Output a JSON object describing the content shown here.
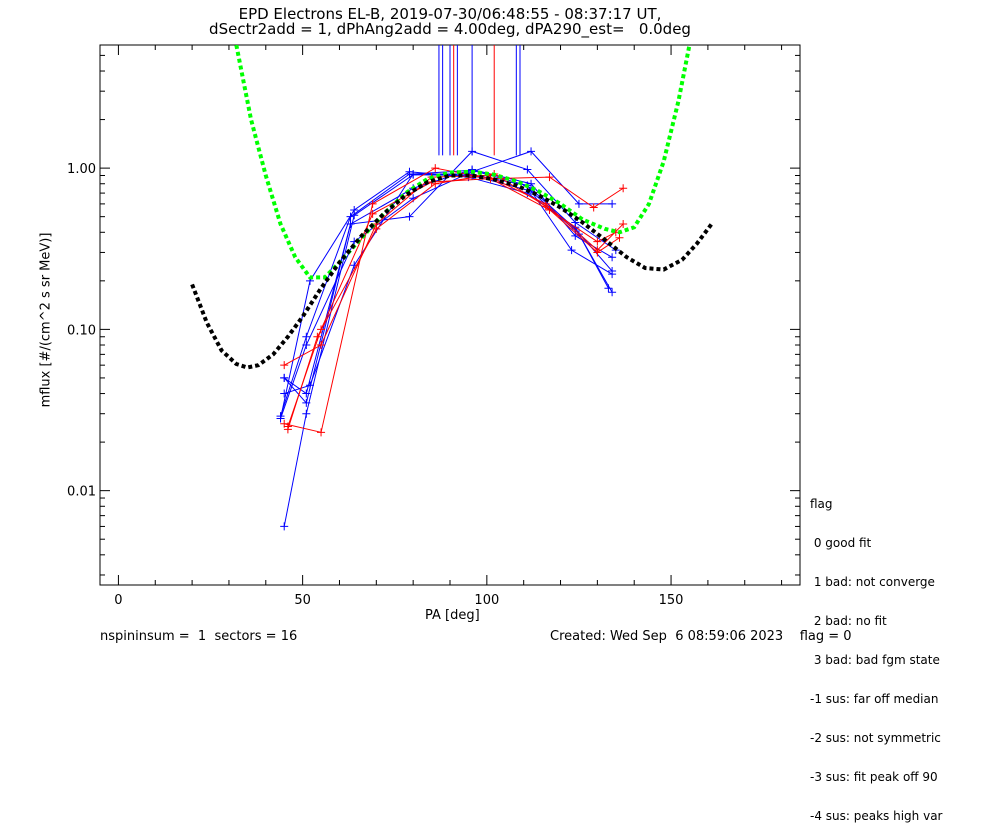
{
  "title_line1": "EPD Electrons EL-B, 2019-07-30/06:48:55 - 08:37:17 UT,",
  "title_line2": "dSectr2add = 1, dPhAng2add = 4.00deg, dPA290_est=   0.0deg",
  "footer_left": "nspininsum =  1  sectors = 16",
  "footer_right": "Created: Wed Sep  6 08:59:06 2023    flag = 0",
  "legend": {
    "title": "flag",
    "items": [
      " 0 good fit",
      " 1 bad: not converge",
      " 2 bad: no fit",
      " 3 bad: bad fgm state",
      "-1 sus: far off median",
      "-2 sus: not symmetric",
      "-3 sus: fit peak off 90",
      "-4 sus: peaks high var"
    ]
  },
  "chart_data": {
    "type": "line",
    "xlabel": "PA [deg]",
    "ylabel": "mflux [#/(cm^2 s sr MeV)]",
    "xlim": [
      -5,
      185
    ],
    "ylim": [
      0.0026,
      5.8
    ],
    "yscale": "log",
    "xticks": [
      0,
      50,
      100,
      150
    ],
    "yticks": [
      0.01,
      0.1,
      1.0
    ],
    "ytick_labels": [
      "0.01",
      "0.10",
      "1.00"
    ],
    "colors": {
      "blue": "#0000ff",
      "red": "#ff0000",
      "green": "#00ff00",
      "black": "#000000"
    },
    "series": [
      {
        "color": "blue",
        "points": [
          [
            44,
            0.029
          ],
          [
            51,
            0.09
          ],
          [
            63,
            0.5
          ],
          [
            79,
            0.92
          ],
          [
            95,
            0.92
          ],
          [
            111,
            0.78
          ],
          [
            124,
            0.42
          ],
          [
            134,
            0.23
          ]
        ]
      },
      {
        "color": "blue",
        "points": [
          [
            45,
            0.006
          ],
          [
            51,
            0.03
          ],
          [
            64,
            0.51
          ],
          [
            80,
            0.91
          ],
          [
            96,
            0.9
          ],
          [
            112,
            0.72
          ],
          [
            125,
            0.39
          ],
          [
            134,
            0.17
          ]
        ]
      },
      {
        "color": "blue",
        "points": [
          [
            44,
            0.028
          ],
          [
            52,
            0.2
          ],
          [
            64,
            0.55
          ],
          [
            79,
            0.95
          ],
          [
            95,
            0.88
          ],
          [
            111,
            0.7
          ],
          [
            124,
            0.43
          ],
          [
            133,
            0.18
          ]
        ]
      },
      {
        "color": "blue",
        "points": [
          [
            45,
            0.05
          ],
          [
            51,
            0.04
          ],
          [
            63,
            0.45
          ],
          [
            79,
            0.5
          ],
          [
            96,
            1.27
          ],
          [
            111,
            0.98
          ],
          [
            124,
            0.46
          ],
          [
            135,
            0.31
          ]
        ]
      },
      {
        "color": "blue",
        "points": [
          [
            44,
            0.028
          ],
          [
            51,
            0.08
          ],
          [
            64,
            0.35
          ],
          [
            80,
            0.65
          ],
          [
            96,
            0.95
          ],
          [
            112,
            1.27
          ],
          [
            125,
            0.6
          ],
          [
            134,
            0.6
          ]
        ]
      },
      {
        "color": "blue",
        "points": [
          [
            45,
            0.05
          ],
          [
            51,
            0.035
          ],
          [
            63,
            0.45
          ],
          [
            80,
            0.75
          ],
          [
            96,
            0.98
          ],
          [
            112,
            0.8
          ],
          [
            124,
            0.38
          ],
          [
            134,
            0.28
          ]
        ]
      },
      {
        "color": "blue",
        "points": [
          [
            45,
            0.04
          ],
          [
            52,
            0.045
          ],
          [
            64,
            0.25
          ],
          [
            80,
            0.92
          ],
          [
            96,
            0.97
          ],
          [
            111,
            0.78
          ],
          [
            123,
            0.31
          ],
          [
            134,
            0.22
          ]
        ]
      },
      {
        "color": "red",
        "points": [
          [
            45,
            0.06
          ],
          [
            55,
            0.08
          ],
          [
            70,
            0.45
          ],
          [
            85,
            0.88
          ],
          [
            100,
            0.9
          ],
          [
            116,
            0.6
          ],
          [
            130,
            0.31
          ],
          [
            137,
            0.45
          ]
        ]
      },
      {
        "color": "red",
        "points": [
          [
            45,
            0.026
          ],
          [
            55,
            0.023
          ],
          [
            69,
            0.6
          ],
          [
            86,
            1.0
          ],
          [
            101,
            0.86
          ],
          [
            117,
            0.88
          ],
          [
            129,
            0.57
          ],
          [
            137,
            0.75
          ]
        ]
      },
      {
        "color": "red",
        "points": [
          [
            46,
            0.024
          ],
          [
            54,
            0.09
          ],
          [
            70,
            0.42
          ],
          [
            86,
            0.8
          ],
          [
            102,
            0.92
          ],
          [
            116,
            0.58
          ],
          [
            130,
            0.3
          ],
          [
            136,
            0.37
          ]
        ]
      },
      {
        "color": "red",
        "points": [
          [
            46,
            0.025
          ],
          [
            55,
            0.1
          ],
          [
            69,
            0.52
          ],
          [
            85,
            0.82
          ],
          [
            101,
            0.86
          ],
          [
            117,
            0.55
          ],
          [
            130,
            0.35
          ],
          [
            135,
            0.4
          ]
        ]
      }
    ],
    "fit_curves": [
      {
        "color": "green",
        "style": "dashed",
        "points": [
          [
            32,
            5.8
          ],
          [
            36,
            2.0
          ],
          [
            40,
            0.9
          ],
          [
            44,
            0.45
          ],
          [
            48,
            0.28
          ],
          [
            52,
            0.21
          ],
          [
            56,
            0.21
          ],
          [
            60,
            0.26
          ],
          [
            66,
            0.37
          ],
          [
            72,
            0.52
          ],
          [
            78,
            0.7
          ],
          [
            84,
            0.86
          ],
          [
            90,
            0.94
          ],
          [
            96,
            0.95
          ],
          [
            102,
            0.91
          ],
          [
            108,
            0.83
          ],
          [
            114,
            0.72
          ],
          [
            120,
            0.6
          ],
          [
            126,
            0.48
          ],
          [
            132,
            0.42
          ],
          [
            136,
            0.4
          ],
          [
            140,
            0.43
          ],
          [
            144,
            0.6
          ],
          [
            148,
            1.1
          ],
          [
            152,
            2.6
          ],
          [
            155,
            5.8
          ]
        ]
      },
      {
        "color": "black",
        "style": "dashed",
        "points": [
          [
            20,
            0.19
          ],
          [
            24,
            0.11
          ],
          [
            28,
            0.074
          ],
          [
            32,
            0.061
          ],
          [
            35,
            0.058
          ],
          [
            38,
            0.06
          ],
          [
            42,
            0.07
          ],
          [
            46,
            0.09
          ],
          [
            50,
            0.12
          ],
          [
            55,
            0.18
          ],
          [
            60,
            0.26
          ],
          [
            66,
            0.38
          ],
          [
            72,
            0.52
          ],
          [
            78,
            0.68
          ],
          [
            84,
            0.82
          ],
          [
            90,
            0.9
          ],
          [
            96,
            0.9
          ],
          [
            102,
            0.85
          ],
          [
            108,
            0.78
          ],
          [
            114,
            0.68
          ],
          [
            120,
            0.57
          ],
          [
            126,
            0.46
          ],
          [
            132,
            0.36
          ],
          [
            138,
            0.28
          ],
          [
            143,
            0.24
          ],
          [
            148,
            0.235
          ],
          [
            153,
            0.27
          ],
          [
            157,
            0.34
          ],
          [
            161,
            0.45
          ]
        ]
      }
    ],
    "vertical_lines": [
      {
        "x": 87,
        "color": "blue"
      },
      {
        "x": 88,
        "color": "blue"
      },
      {
        "x": 90,
        "color": "blue"
      },
      {
        "x": 91,
        "color": "red"
      },
      {
        "x": 92,
        "color": "blue"
      },
      {
        "x": 96,
        "color": "blue"
      },
      {
        "x": 102,
        "color": "red"
      },
      {
        "x": 108,
        "color": "blue"
      },
      {
        "x": 109,
        "color": "blue"
      }
    ],
    "vertical_line_range": [
      1.2,
      5.8
    ]
  }
}
